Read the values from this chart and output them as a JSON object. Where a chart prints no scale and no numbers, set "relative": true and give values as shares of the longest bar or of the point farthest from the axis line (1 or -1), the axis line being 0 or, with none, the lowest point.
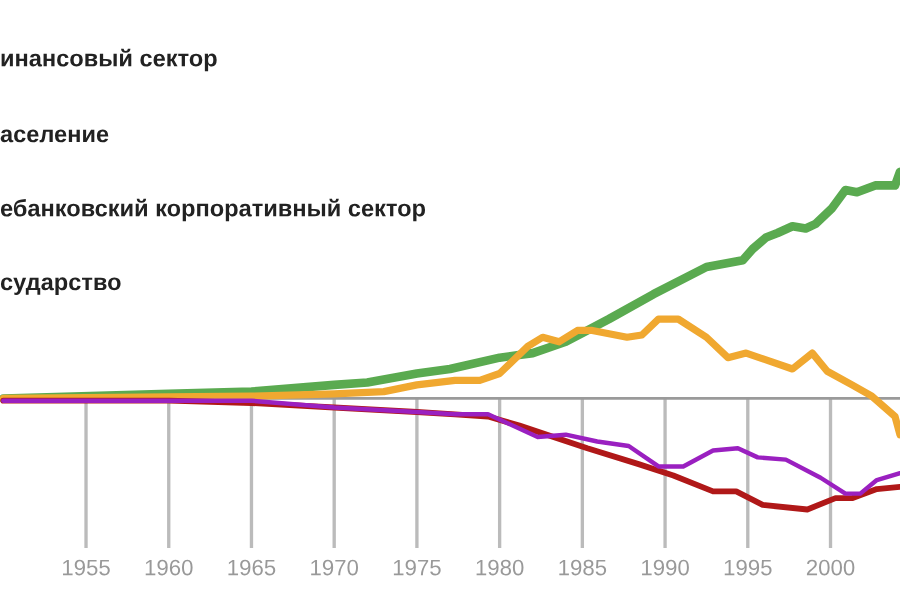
{
  "chart_data": {
    "type": "line",
    "relative": true,
    "grid": "x",
    "xlim": [
      1949.8,
      2004.2
    ],
    "xticks": [
      1955,
      1960,
      1965,
      1970,
      1975,
      1980,
      1985,
      1990,
      1995,
      2000
    ],
    "annotations": [
      "инансовый сектор",
      "аселение",
      "ебанковский корпоративный сектор",
      "сударство"
    ],
    "series": [
      {
        "color": "#5aaa50",
        "x": [
          1950,
          1960,
          1965,
          1970,
          1972,
          1975,
          1977,
          1980,
          1982,
          1984,
          1986.6,
          1989.3,
          1992.5,
          1994.7,
          1995.3,
          1996.1,
          1996.8,
          1997.7,
          1998.5,
          1999.1,
          2000.1,
          2000.9,
          2001.6,
          2002.7,
          2003.9,
          2004.2
        ],
        "values": [
          0,
          0.02,
          0.03,
          0.06,
          0.07,
          0.11,
          0.13,
          0.18,
          0.2,
          0.25,
          0.35,
          0.46,
          0.58,
          0.61,
          0.66,
          0.71,
          0.73,
          0.76,
          0.75,
          0.77,
          0.84,
          0.92,
          0.91,
          0.94,
          0.94,
          1.0
        ]
      },
      {
        "color": "#f0a830",
        "x": [
          1950,
          1965,
          1970,
          1973,
          1975,
          1977.3,
          1978.8,
          1980,
          1981.7,
          1982.6,
          1983.6,
          1984.7,
          1985.6,
          1987.7,
          1988.6,
          1989.6,
          1990.8,
          1992.5,
          1993.8,
          1994.9,
          1997.7,
          1998.9,
          1999.8,
          2001.3,
          2002.5,
          2003.9,
          2004.2
        ],
        "values": [
          0,
          0.01,
          0.02,
          0.03,
          0.06,
          0.08,
          0.08,
          0.11,
          0.23,
          0.27,
          0.25,
          0.3,
          0.3,
          0.27,
          0.28,
          0.35,
          0.35,
          0.27,
          0.18,
          0.2,
          0.13,
          0.2,
          0.12,
          0.06,
          0.01,
          -0.08,
          -0.16
        ]
      },
      {
        "color": "#b01818",
        "x": [
          1950,
          1960,
          1965,
          1970,
          1975,
          1977.3,
          1979.3,
          1981.2,
          1985.3,
          1988.4,
          1990.5,
          1992.9,
          1994.3,
          1995.9,
          1998.6,
          2000.3,
          2001.3,
          2002.8,
          2004.2
        ],
        "values": [
          -0.01,
          -0.01,
          -0.02,
          -0.04,
          -0.06,
          -0.07,
          -0.08,
          -0.12,
          -0.22,
          -0.29,
          -0.34,
          -0.41,
          -0.41,
          -0.47,
          -0.49,
          -0.44,
          -0.44,
          -0.4,
          -0.39
        ]
      },
      {
        "color": "#9a20c0",
        "x": [
          1950,
          1965,
          1970,
          1975,
          1977.3,
          1979.3,
          1982.3,
          1984,
          1985.9,
          1987.8,
          1989.6,
          1991.1,
          1992.9,
          1994.4,
          1995.6,
          1997.3,
          1999.4,
          2000.9,
          2001.8,
          2002.8,
          2004.2
        ],
        "values": [
          -0.01,
          -0.01,
          -0.04,
          -0.06,
          -0.07,
          -0.07,
          -0.17,
          -0.16,
          -0.19,
          -0.21,
          -0.3,
          -0.3,
          -0.23,
          -0.22,
          -0.26,
          -0.27,
          -0.35,
          -0.42,
          -0.42,
          -0.36,
          -0.33
        ]
      }
    ]
  }
}
